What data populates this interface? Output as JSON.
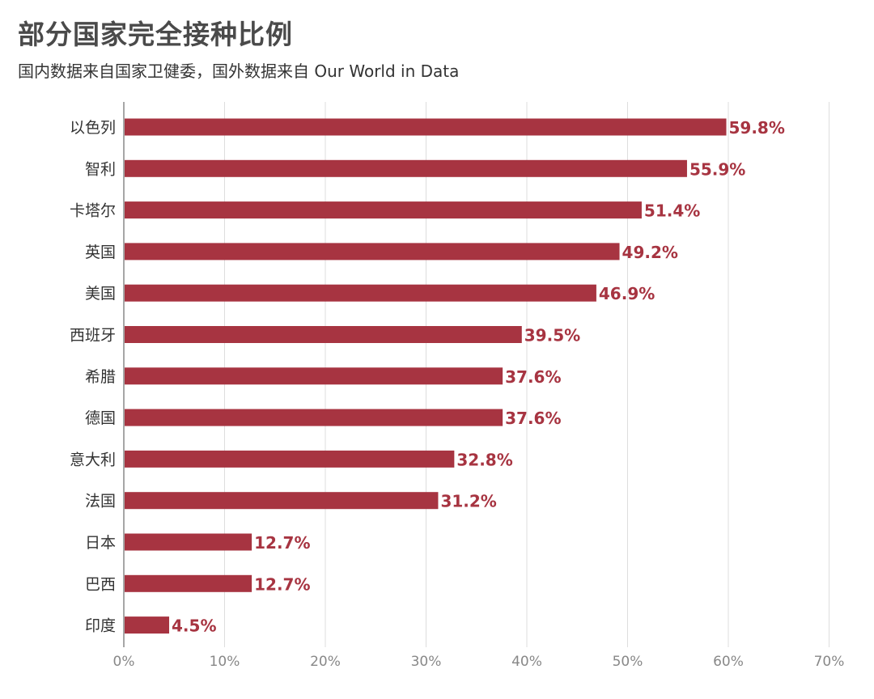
{
  "title": "部分国家完全接种比例",
  "subtitle": "国内数据来自国家卫健委，国外数据来自 Our World in Data",
  "colors": {
    "bar": "#a73441",
    "value_label": "#a73441",
    "grid": "#dddddd",
    "axis": "#888888"
  },
  "chart_data": {
    "type": "bar",
    "orientation": "horizontal",
    "categories": [
      "以色列",
      "智利",
      "卡塔尔",
      "英国",
      "美国",
      "西班牙",
      "希腊",
      "德国",
      "意大利",
      "法国",
      "日本",
      "巴西",
      "印度"
    ],
    "values": [
      59.8,
      55.9,
      51.4,
      49.2,
      46.9,
      39.5,
      37.6,
      37.6,
      32.8,
      31.2,
      12.7,
      12.7,
      4.5
    ],
    "value_labels": [
      "59.8%",
      "55.9%",
      "51.4%",
      "49.2%",
      "46.9%",
      "39.5%",
      "37.6%",
      "37.6%",
      "32.8%",
      "31.2%",
      "12.7%",
      "12.7%",
      "4.5%"
    ],
    "xlim": [
      0,
      70
    ],
    "ticks": [
      0,
      10,
      20,
      30,
      40,
      50,
      60,
      70
    ],
    "tick_labels": [
      "0%",
      "10%",
      "20%",
      "30%",
      "40%",
      "50%",
      "60%",
      "70%"
    ],
    "grid": true,
    "xlabel": "",
    "ylabel": ""
  }
}
